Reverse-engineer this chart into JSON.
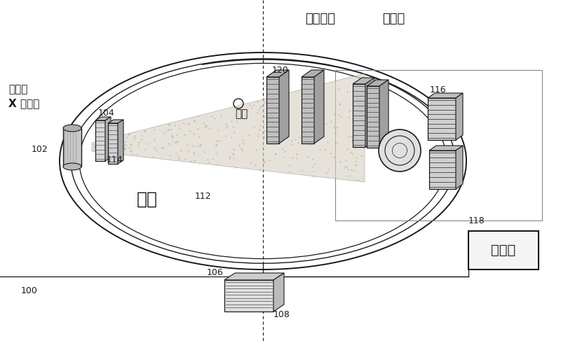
{
  "bg_color": "#ffffff",
  "title_label1": "光栅系统",
  "title_label2": "检测器",
  "label_hospital": "医院级",
  "label_xray": "X 射线管",
  "label_object": "物体",
  "label_gantry": "托台",
  "label_processor": "处理器",
  "num_100": "100",
  "num_102": "102",
  "num_104": "104",
  "num_106": "106",
  "num_108": "108",
  "num_112": "112",
  "num_114": "114",
  "num_116": "116",
  "num_118": "118",
  "num_120": "120",
  "line_color": "#1a1a1a"
}
